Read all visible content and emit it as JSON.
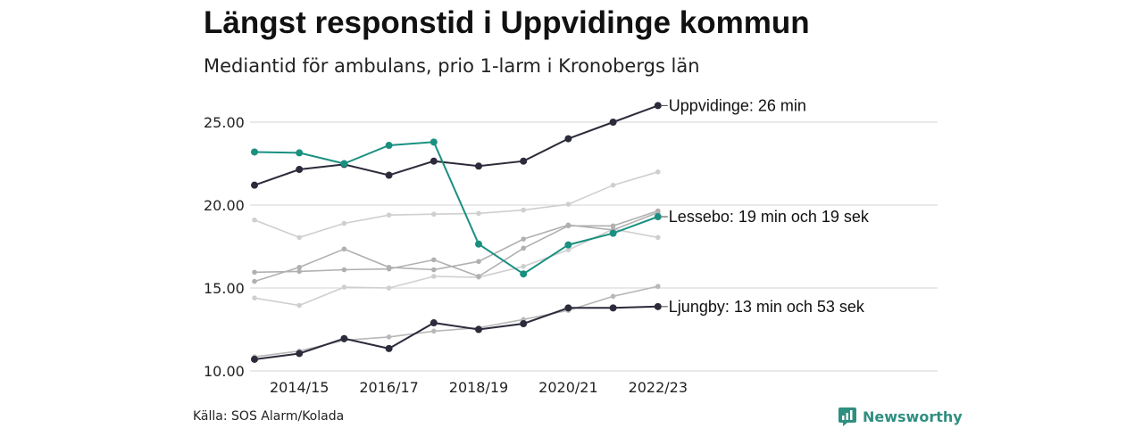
{
  "title": "Längst responstid i Uppvidinge kommun",
  "subtitle": "Mediantid för ambulans, prio 1-larm i Kronobergs län",
  "source": "Källa: SOS Alarm/Kolada",
  "logo": {
    "text": "Newsworthy",
    "color": "#2f8f80",
    "icon": "newsworthy-chart-icon"
  },
  "chart_data": {
    "type": "line",
    "title": "Längst responstid i Uppvidinge kommun",
    "subtitle": "Mediantid för ambulans, prio 1-larm i Kronobergs län",
    "xlabel": "",
    "ylabel": "",
    "x": [
      "2013/14",
      "2014/15",
      "2015/16",
      "2016/17",
      "2017/18",
      "2018/19",
      "2019/20",
      "2020/21",
      "2021/22",
      "2022/23"
    ],
    "x_tick_labels": [
      "2014/15",
      "2016/17",
      "2018/19",
      "2020/21",
      "2022/23"
    ],
    "y_ticks": [
      "10.00",
      "15.00",
      "20.00",
      "25.00"
    ],
    "ylim": [
      10,
      26.8
    ],
    "grid": "horizontal",
    "series": [
      {
        "name": "",
        "color": "#cfcfcf",
        "values": [
          19.1,
          18.05,
          18.9,
          19.4,
          19.45,
          19.5,
          19.7,
          20.05,
          21.2,
          22.0
        ]
      },
      {
        "name": "",
        "color": "#cfcfcf",
        "values": [
          14.4,
          13.95,
          15.05,
          15.0,
          15.7,
          15.65,
          16.3,
          17.3,
          18.55,
          18.05
        ]
      },
      {
        "name": "",
        "color": "#b0b0b0",
        "values": [
          15.95,
          16.0,
          16.1,
          16.15,
          16.7,
          15.7,
          17.4,
          18.75,
          18.75,
          19.65
        ]
      },
      {
        "name": "",
        "color": "#b0b0b0",
        "values": [
          15.4,
          16.25,
          17.35,
          16.25,
          16.1,
          16.6,
          17.95,
          18.8,
          18.5,
          19.55
        ]
      },
      {
        "name": "",
        "color": "#b8b8b8",
        "values": [
          10.85,
          11.2,
          11.85,
          12.05,
          12.4,
          12.6,
          13.1,
          13.65,
          14.5,
          15.1
        ]
      },
      {
        "name": "Uppvidinge",
        "color": "#2b2b3b",
        "label": "Uppvidinge: 26 min",
        "values": [
          21.2,
          22.15,
          22.45,
          21.8,
          22.65,
          22.35,
          22.65,
          24.0,
          25.0,
          26.0
        ]
      },
      {
        "name": "Lessebo",
        "color": "#1a9080",
        "label": "Lessebo: 19 min och 19 sek",
        "values": [
          23.2,
          23.15,
          22.5,
          23.6,
          23.8,
          17.65,
          15.85,
          17.6,
          18.3,
          19.3
        ]
      },
      {
        "name": "Ljungby",
        "color": "#2b2b3b",
        "label": "Ljungby: 13 min och 53 sek",
        "values": [
          10.7,
          11.05,
          11.95,
          11.35,
          12.9,
          12.5,
          12.85,
          13.8,
          13.8,
          13.88
        ]
      }
    ]
  }
}
